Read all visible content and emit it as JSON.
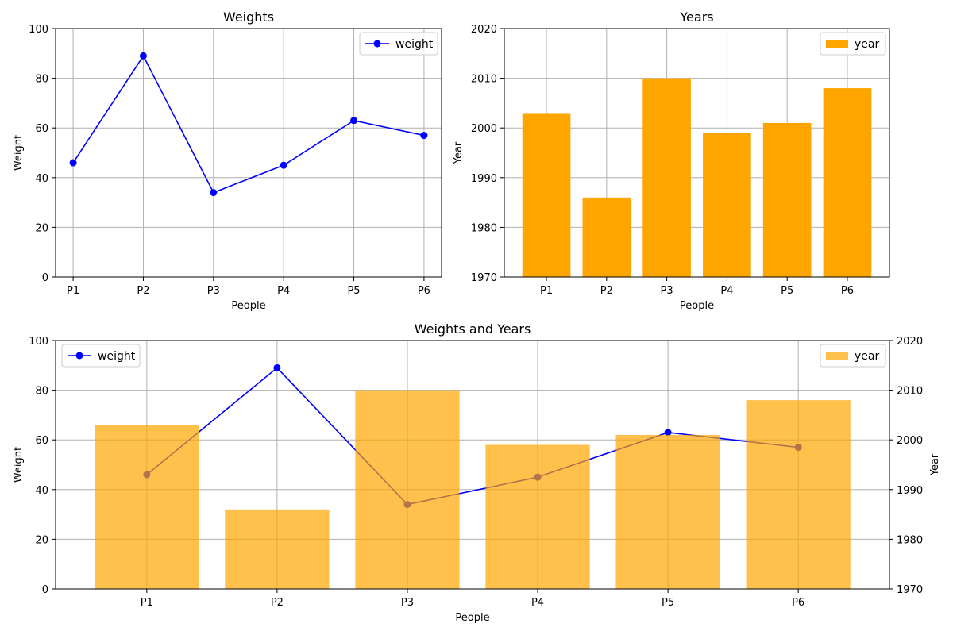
{
  "chart_data": [
    {
      "type": "line",
      "title": "Weights",
      "xlabel": "People",
      "ylabel": "Weight",
      "categories": [
        "P1",
        "P2",
        "P3",
        "P4",
        "P5",
        "P6"
      ],
      "series": [
        {
          "name": "weight",
          "values": [
            46,
            89,
            34,
            45,
            63,
            57
          ],
          "color": "#0000ff"
        }
      ],
      "ylim": [
        0,
        100
      ],
      "yticks": [
        0,
        20,
        40,
        60,
        80,
        100
      ],
      "grid": true,
      "legend": "top-right"
    },
    {
      "type": "bar",
      "title": "Years",
      "xlabel": "People",
      "ylabel": "Year",
      "categories": [
        "P1",
        "P2",
        "P3",
        "P4",
        "P5",
        "P6"
      ],
      "series": [
        {
          "name": "year",
          "values": [
            2003,
            1986,
            2010,
            1999,
            2001,
            2008
          ],
          "color": "#ffa500"
        }
      ],
      "ylim": [
        1970,
        2020
      ],
      "yticks": [
        1970,
        1980,
        1990,
        2000,
        2010,
        2020
      ],
      "grid": true,
      "legend": "top-right"
    },
    {
      "type": "bar",
      "title": "Weights and Years",
      "xlabel": "People",
      "ylabel": "Weight",
      "ylabel_right": "Year",
      "categories": [
        "P1",
        "P2",
        "P3",
        "P4",
        "P5",
        "P6"
      ],
      "line_series": {
        "name": "weight",
        "values": [
          46,
          89,
          34,
          45,
          63,
          57
        ],
        "color": "#0000ff"
      },
      "bar_series": {
        "name": "year",
        "values": [
          2003,
          1986,
          2010,
          1999,
          2001,
          2008
        ],
        "color": "#ffa500",
        "opacity": 0.7
      },
      "ylim": [
        0,
        100
      ],
      "ylim_right": [
        1970,
        2020
      ],
      "yticks": [
        0,
        20,
        40,
        60,
        80,
        100
      ],
      "yticks_right": [
        1970,
        1980,
        1990,
        2000,
        2010,
        2020
      ],
      "grid": true,
      "legend_line": "top-left",
      "legend_bar": "top-right"
    }
  ]
}
